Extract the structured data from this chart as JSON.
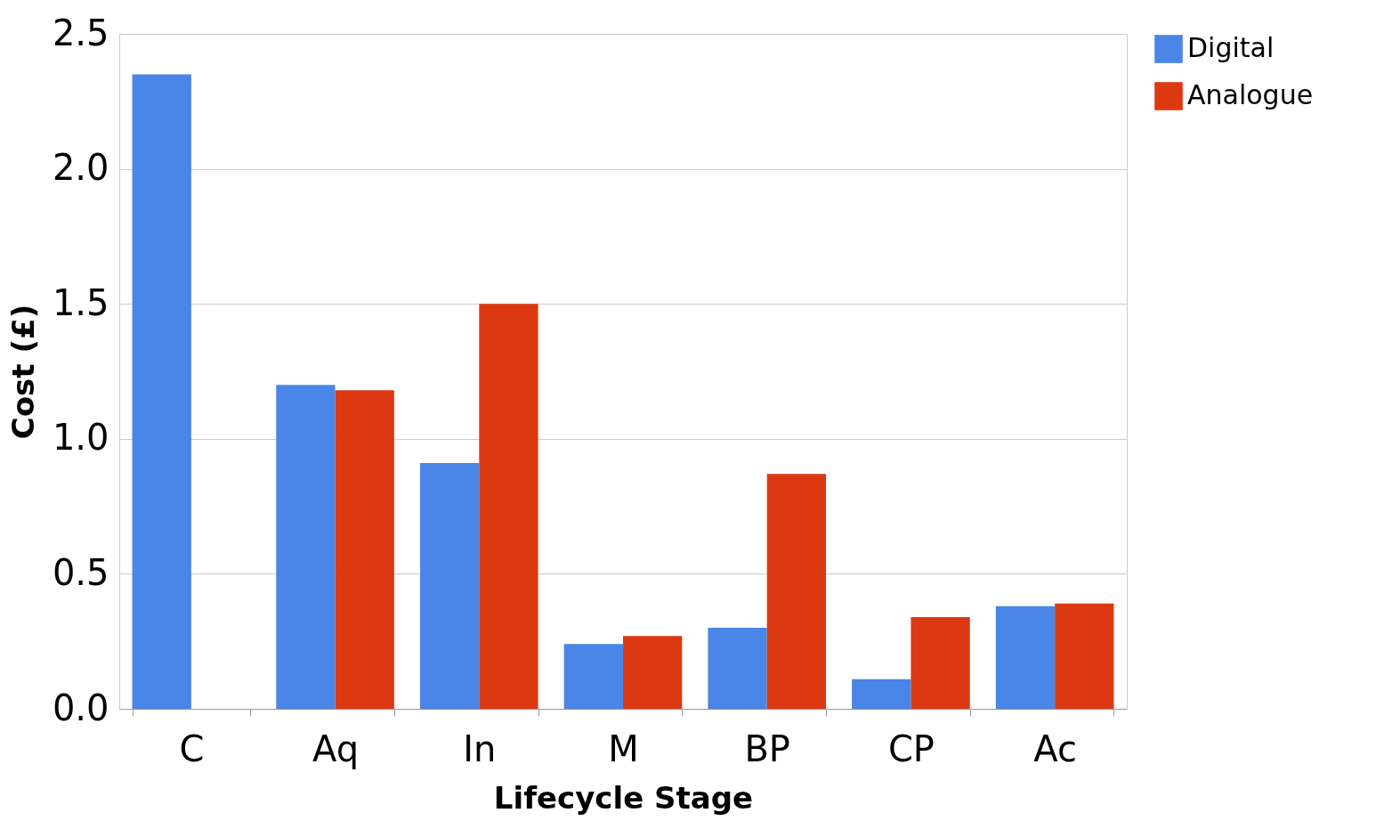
{
  "chart_data": {
    "type": "bar",
    "xlabel": "Lifecycle Stage",
    "ylabel": "Cost (£)",
    "categories": [
      "C",
      "Aq",
      "In",
      "M",
      "BP",
      "CP",
      "Ac"
    ],
    "series": [
      {
        "name": "Digital",
        "color": "#4a86e8",
        "values": [
          2.35,
          1.2,
          0.91,
          0.24,
          0.3,
          0.11,
          0.38
        ]
      },
      {
        "name": "Analogue",
        "color": "#dc3912",
        "values": [
          0,
          1.18,
          1.5,
          0.27,
          0.87,
          0.34,
          0.39
        ]
      }
    ],
    "ylim": [
      0,
      2.5
    ],
    "yticks": [
      {
        "value": 0,
        "label": "0.0"
      },
      0.5,
      {
        "value": 1,
        "label": "1.0"
      },
      1.5,
      {
        "value": 2,
        "label": "2.0"
      },
      2.5
    ],
    "grid": "y",
    "legend": "right"
  }
}
